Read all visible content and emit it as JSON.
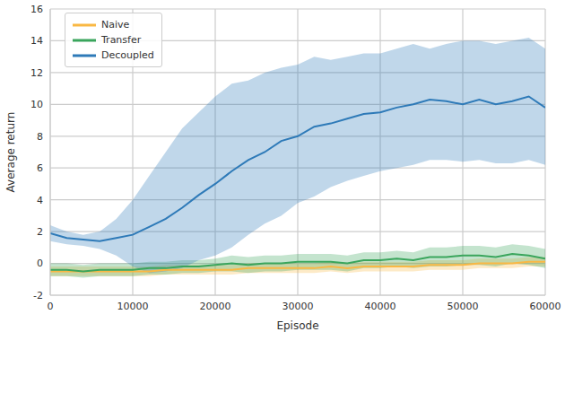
{
  "chart_data": {
    "type": "line",
    "x_label": "Episode",
    "y_label": "Average return",
    "xlim": [
      0,
      60000
    ],
    "xticks": [
      0,
      10000,
      20000,
      30000,
      40000,
      50000,
      60000
    ],
    "ylim": [
      -2,
      16
    ],
    "yticks": [
      -2,
      0,
      2,
      4,
      6,
      8,
      10,
      12,
      14,
      16
    ],
    "grid": true,
    "legend": "upper left",
    "x": [
      0,
      2000,
      4000,
      6000,
      8000,
      10000,
      12000,
      14000,
      16000,
      18000,
      20000,
      22000,
      24000,
      26000,
      28000,
      30000,
      32000,
      34000,
      36000,
      38000,
      40000,
      42000,
      44000,
      46000,
      48000,
      50000,
      52000,
      54000,
      56000,
      58000,
      60000
    ],
    "series": [
      {
        "name": "Naive",
        "color": "#f9b844",
        "values": [
          -0.5,
          -0.5,
          -0.5,
          -0.5,
          -0.5,
          -0.5,
          -0.5,
          -0.4,
          -0.4,
          -0.4,
          -0.4,
          -0.4,
          -0.3,
          -0.3,
          -0.3,
          -0.3,
          -0.3,
          -0.2,
          -0.3,
          -0.2,
          -0.2,
          -0.2,
          -0.2,
          -0.1,
          -0.1,
          -0.1,
          0.0,
          0.0,
          0.0,
          0.1,
          0.1
        ],
        "lower": [
          -0.8,
          -0.8,
          -0.8,
          -0.8,
          -0.8,
          -0.8,
          -0.8,
          -0.7,
          -0.7,
          -0.7,
          -0.7,
          -0.7,
          -0.6,
          -0.6,
          -0.6,
          -0.6,
          -0.6,
          -0.5,
          -0.6,
          -0.5,
          -0.5,
          -0.5,
          -0.5,
          -0.4,
          -0.4,
          -0.4,
          -0.3,
          -0.3,
          -0.3,
          -0.2,
          -0.2
        ],
        "upper": [
          -0.2,
          -0.2,
          -0.2,
          -0.2,
          -0.2,
          -0.2,
          -0.2,
          -0.1,
          -0.1,
          -0.1,
          -0.1,
          -0.1,
          0.0,
          0.0,
          0.0,
          0.0,
          0.0,
          0.1,
          0.0,
          0.1,
          0.1,
          0.1,
          0.1,
          0.2,
          0.2,
          0.2,
          0.3,
          0.3,
          0.3,
          0.4,
          0.4
        ]
      },
      {
        "name": "Transfer",
        "color": "#3aa55c",
        "values": [
          -0.4,
          -0.4,
          -0.5,
          -0.4,
          -0.4,
          -0.4,
          -0.3,
          -0.3,
          -0.2,
          -0.2,
          -0.1,
          0.0,
          -0.1,
          0.0,
          0.0,
          0.1,
          0.1,
          0.1,
          0.0,
          0.2,
          0.2,
          0.3,
          0.2,
          0.4,
          0.4,
          0.5,
          0.5,
          0.4,
          0.6,
          0.5,
          0.3
        ],
        "lower": [
          -0.8,
          -0.8,
          -0.9,
          -0.8,
          -0.8,
          -0.8,
          -0.7,
          -0.7,
          -0.6,
          -0.6,
          -0.5,
          -0.5,
          -0.6,
          -0.5,
          -0.5,
          -0.4,
          -0.4,
          -0.4,
          -0.5,
          -0.3,
          -0.3,
          -0.2,
          -0.3,
          -0.2,
          -0.2,
          -0.1,
          -0.1,
          -0.2,
          0.0,
          -0.1,
          -0.3
        ],
        "upper": [
          0.0,
          0.0,
          -0.1,
          0.0,
          0.0,
          0.0,
          0.1,
          0.1,
          0.2,
          0.2,
          0.3,
          0.5,
          0.4,
          0.5,
          0.5,
          0.6,
          0.6,
          0.6,
          0.5,
          0.7,
          0.7,
          0.8,
          0.7,
          1.0,
          1.0,
          1.1,
          1.1,
          1.0,
          1.2,
          1.1,
          0.9
        ]
      },
      {
        "name": "Decoupled",
        "color": "#2e7ab8",
        "values": [
          1.9,
          1.6,
          1.5,
          1.4,
          1.6,
          1.8,
          2.3,
          2.8,
          3.5,
          4.3,
          5.0,
          5.8,
          6.5,
          7.0,
          7.7,
          8.0,
          8.6,
          8.8,
          9.1,
          9.4,
          9.5,
          9.8,
          10.0,
          10.3,
          10.2,
          10.0,
          10.3,
          10.0,
          10.2,
          10.5,
          9.8
        ],
        "lower": [
          1.4,
          1.2,
          1.1,
          0.9,
          0.5,
          -0.2,
          -0.6,
          -0.5,
          -0.3,
          0.2,
          0.5,
          1.0,
          1.8,
          2.5,
          3.0,
          3.8,
          4.2,
          4.8,
          5.2,
          5.5,
          5.8,
          6.0,
          6.2,
          6.5,
          6.5,
          6.4,
          6.5,
          6.3,
          6.3,
          6.5,
          6.2
        ],
        "upper": [
          2.4,
          2.0,
          1.8,
          2.0,
          2.8,
          4.0,
          5.5,
          7.0,
          8.5,
          9.5,
          10.5,
          11.3,
          11.5,
          12.0,
          12.3,
          12.5,
          13.0,
          12.8,
          13.0,
          13.2,
          13.2,
          13.5,
          13.8,
          13.5,
          13.8,
          14.0,
          14.0,
          13.8,
          14.0,
          14.2,
          13.5
        ]
      }
    ]
  }
}
